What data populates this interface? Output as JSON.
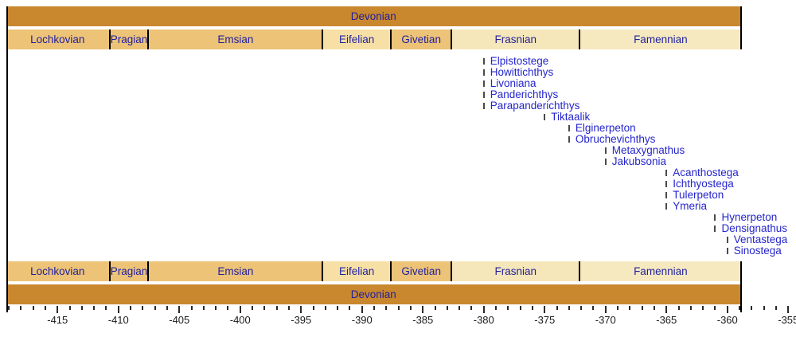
{
  "chart_data": {
    "type": "timeline",
    "description": "Geologic timescale range chart of Devonian stages with first appearances of elpistostegalian fish and early tetrapod genera",
    "axis": {
      "unit": "Ma",
      "min": -419.2,
      "max": -355,
      "major_ticks": [
        -415,
        -410,
        -405,
        -400,
        -395,
        -390,
        -385,
        -380,
        -375,
        -370,
        -365,
        -360,
        -355
      ],
      "minor_tick_step": 1,
      "grid": false
    },
    "periods": [
      {
        "name": "Devonian",
        "start": -419.2,
        "end": -358.9,
        "color": "#c9872e"
      }
    ],
    "stages": [
      {
        "name": "Lochkovian",
        "start": -419.2,
        "end": -410.8,
        "color": "#ecc377"
      },
      {
        "name": "Pragian",
        "start": -410.8,
        "end": -407.6,
        "color": "#ecc377"
      },
      {
        "name": "Emsian",
        "start": -407.6,
        "end": -393.3,
        "color": "#ecc377"
      },
      {
        "name": "Eifelian",
        "start": -393.3,
        "end": -387.7,
        "color": "#f7e0a6"
      },
      {
        "name": "Givetian",
        "start": -387.7,
        "end": -382.7,
        "color": "#ecc377"
      },
      {
        "name": "Frasnian",
        "start": -382.7,
        "end": -372.2,
        "color": "#f6e7ba"
      },
      {
        "name": "Famennian",
        "start": -372.2,
        "end": -358.9,
        "color": "#f6e9c0"
      }
    ],
    "taxa": [
      {
        "name": "Elpistostege",
        "first_appearance": -380
      },
      {
        "name": "Howittichthys",
        "first_appearance": -380
      },
      {
        "name": "Livoniana",
        "first_appearance": -380
      },
      {
        "name": "Panderichthys",
        "first_appearance": -380
      },
      {
        "name": "Parapanderichthys",
        "first_appearance": -380
      },
      {
        "name": "Tiktaalik",
        "first_appearance": -375
      },
      {
        "name": "Elginerpeton",
        "first_appearance": -373
      },
      {
        "name": "Obruchevichthys",
        "first_appearance": -373
      },
      {
        "name": "Metaxygnathus",
        "first_appearance": -370
      },
      {
        "name": "Jakubsonia",
        "first_appearance": -370
      },
      {
        "name": "Acanthostega",
        "first_appearance": -365
      },
      {
        "name": "Ichthyostega",
        "first_appearance": -365
      },
      {
        "name": "Tulerpeton",
        "first_appearance": -365
      },
      {
        "name": "Ymeria",
        "first_appearance": -365
      },
      {
        "name": "Hynerpeton",
        "first_appearance": -361
      },
      {
        "name": "Densignathus",
        "first_appearance": -361
      },
      {
        "name": "Ventastega",
        "first_appearance": -360
      },
      {
        "name": "Sinostega",
        "first_appearance": -360
      }
    ],
    "colors": {
      "period_bar": "#c9872e",
      "stage_label": "#1f1f9e",
      "taxon_label": "#2525cd",
      "taxon_tick": "#4a4a4a",
      "axis_label": "#1a1a1a",
      "separator": "#000000"
    }
  }
}
